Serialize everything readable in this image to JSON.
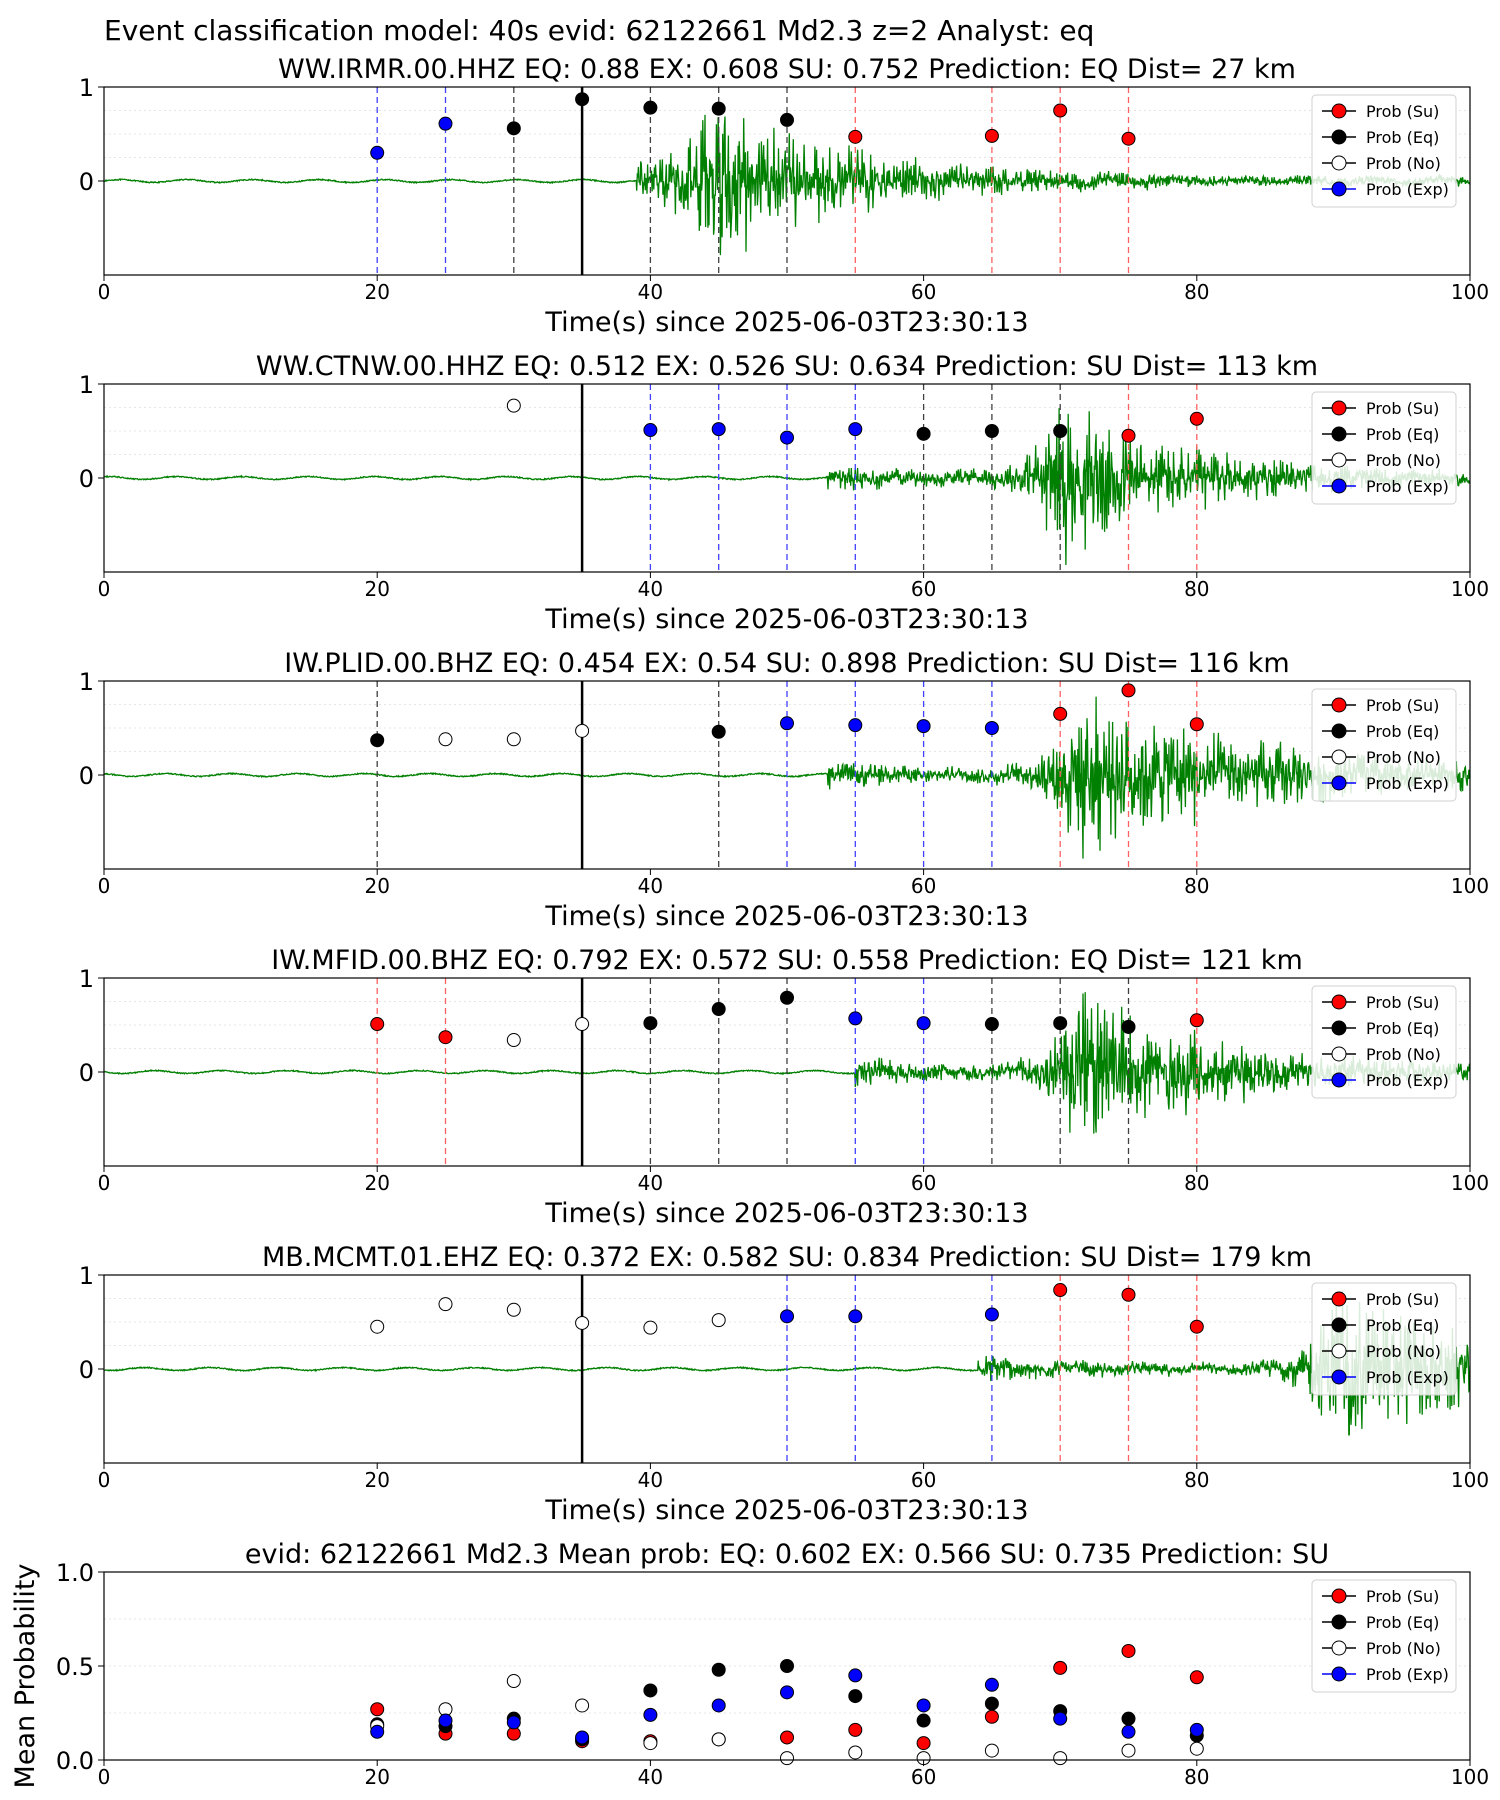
{
  "figure": {
    "suptitle": "Event classification model: 40s evid: 62122661 Md2.3 z=2 Analyst: eq"
  },
  "legend_labels": {
    "su": "Prob (Su)",
    "eq": "Prob (Eq)",
    "no": "Prob (No)",
    "exp": "Prob (Exp)"
  },
  "colors": {
    "su": "#ff0000",
    "eq": "#000000",
    "no": "#ffffff",
    "exp": "#0000ff",
    "waveform": "#008000",
    "su_line": "#ff6060",
    "eq_line": "#404040",
    "exp_line": "#4040ff"
  },
  "chart_data": [
    {
      "type": "scatter",
      "title": "WW.IRMR.00.HHZ   EQ: 0.88  EX: 0.608  SU: 0.752   Prediction: EQ    Dist= 27 km",
      "xlabel": "Time(s) since 2025-06-03T23:30:13",
      "ylabel": "",
      "xlim": [
        0,
        100
      ],
      "ylim": [
        -1,
        1
      ],
      "xticks": [
        "0",
        "20",
        "40",
        "60",
        "80",
        "100"
      ],
      "yticks": [
        "0",
        "1"
      ],
      "marker_line": 35,
      "waveform": {
        "onset": 39,
        "peak_time": 44,
        "peak_amp": 0.9,
        "decay": 10
      },
      "points": [
        {
          "x": 20,
          "y": 0.3,
          "cls": "exp"
        },
        {
          "x": 25,
          "y": 0.61,
          "cls": "exp"
        },
        {
          "x": 30,
          "y": 0.56,
          "cls": "eq"
        },
        {
          "x": 35,
          "y": 0.87,
          "cls": "eq"
        },
        {
          "x": 40,
          "y": 0.78,
          "cls": "eq"
        },
        {
          "x": 45,
          "y": 0.77,
          "cls": "eq"
        },
        {
          "x": 50,
          "y": 0.65,
          "cls": "eq"
        },
        {
          "x": 55,
          "y": 0.47,
          "cls": "su"
        },
        {
          "x": 65,
          "y": 0.48,
          "cls": "su"
        },
        {
          "x": 70,
          "y": 0.75,
          "cls": "su"
        },
        {
          "x": 75,
          "y": 0.45,
          "cls": "su"
        }
      ]
    },
    {
      "type": "scatter",
      "title": "WW.CTNW.00.HHZ   EQ: 0.512  EX: 0.526  SU: 0.634   Prediction: SU    Dist= 113 km",
      "xlabel": "Time(s) since 2025-06-03T23:30:13",
      "ylabel": "",
      "xlim": [
        0,
        100
      ],
      "ylim": [
        -1,
        1
      ],
      "xticks": [
        "0",
        "20",
        "40",
        "60",
        "80",
        "100"
      ],
      "yticks": [
        "0",
        "1"
      ],
      "marker_line": 35,
      "waveform": {
        "onset": 53,
        "peak_time": 70,
        "peak_amp": 0.95,
        "decay": 9
      },
      "points": [
        {
          "x": 30,
          "y": 0.77,
          "cls": "no"
        },
        {
          "x": 40,
          "y": 0.51,
          "cls": "exp"
        },
        {
          "x": 45,
          "y": 0.52,
          "cls": "exp"
        },
        {
          "x": 50,
          "y": 0.43,
          "cls": "exp"
        },
        {
          "x": 55,
          "y": 0.52,
          "cls": "exp"
        },
        {
          "x": 60,
          "y": 0.47,
          "cls": "eq"
        },
        {
          "x": 65,
          "y": 0.5,
          "cls": "eq"
        },
        {
          "x": 70,
          "y": 0.5,
          "cls": "eq"
        },
        {
          "x": 75,
          "y": 0.45,
          "cls": "su"
        },
        {
          "x": 80,
          "y": 0.63,
          "cls": "su"
        }
      ]
    },
    {
      "type": "scatter",
      "title": "IW.PLID.00.BHZ   EQ: 0.454  EX: 0.54  SU: 0.898   Prediction: SU    Dist= 116 km",
      "xlabel": "Time(s) since 2025-06-03T23:30:13",
      "ylabel": "",
      "xlim": [
        0,
        100
      ],
      "ylim": [
        -1,
        1
      ],
      "xticks": [
        "0",
        "20",
        "40",
        "60",
        "80",
        "100"
      ],
      "yticks": [
        "0",
        "1"
      ],
      "marker_line": 35,
      "waveform": {
        "onset": 53,
        "peak_time": 71,
        "peak_amp": 0.95,
        "decay": 14
      },
      "points": [
        {
          "x": 20,
          "y": 0.37,
          "cls": "eq"
        },
        {
          "x": 25,
          "y": 0.38,
          "cls": "no"
        },
        {
          "x": 30,
          "y": 0.38,
          "cls": "no"
        },
        {
          "x": 35,
          "y": 0.47,
          "cls": "no"
        },
        {
          "x": 45,
          "y": 0.46,
          "cls": "eq"
        },
        {
          "x": 50,
          "y": 0.55,
          "cls": "exp"
        },
        {
          "x": 55,
          "y": 0.53,
          "cls": "exp"
        },
        {
          "x": 60,
          "y": 0.52,
          "cls": "exp"
        },
        {
          "x": 65,
          "y": 0.5,
          "cls": "exp"
        },
        {
          "x": 70,
          "y": 0.65,
          "cls": "su"
        },
        {
          "x": 75,
          "y": 0.9,
          "cls": "su"
        },
        {
          "x": 80,
          "y": 0.54,
          "cls": "su"
        }
      ]
    },
    {
      "type": "scatter",
      "title": "IW.MFID.00.BHZ   EQ: 0.792  EX: 0.572  SU: 0.558   Prediction: EQ    Dist= 121 km",
      "xlabel": "Time(s) since 2025-06-03T23:30:13",
      "ylabel": "",
      "xlim": [
        0,
        100
      ],
      "ylim": [
        -1,
        1
      ],
      "xticks": [
        "0",
        "20",
        "40",
        "60",
        "80",
        "100"
      ],
      "yticks": [
        "0",
        "1"
      ],
      "marker_line": 35,
      "waveform": {
        "onset": 55,
        "peak_time": 71,
        "peak_amp": 0.9,
        "decay": 11
      },
      "points": [
        {
          "x": 20,
          "y": 0.51,
          "cls": "su"
        },
        {
          "x": 25,
          "y": 0.37,
          "cls": "su"
        },
        {
          "x": 30,
          "y": 0.34,
          "cls": "no"
        },
        {
          "x": 35,
          "y": 0.51,
          "cls": "no"
        },
        {
          "x": 40,
          "y": 0.52,
          "cls": "eq"
        },
        {
          "x": 45,
          "y": 0.67,
          "cls": "eq"
        },
        {
          "x": 50,
          "y": 0.79,
          "cls": "eq"
        },
        {
          "x": 55,
          "y": 0.57,
          "cls": "exp"
        },
        {
          "x": 60,
          "y": 0.52,
          "cls": "exp"
        },
        {
          "x": 65,
          "y": 0.51,
          "cls": "eq"
        },
        {
          "x": 70,
          "y": 0.52,
          "cls": "eq"
        },
        {
          "x": 75,
          "y": 0.48,
          "cls": "eq"
        },
        {
          "x": 80,
          "y": 0.55,
          "cls": "su"
        }
      ]
    },
    {
      "type": "scatter",
      "title": "MB.MCMT.01.EHZ   EQ: 0.372  EX: 0.582  SU: 0.834   Prediction: SU    Dist= 179 km",
      "xlabel": "Time(s) since 2025-06-03T23:30:13",
      "ylabel": "",
      "xlim": [
        0,
        100
      ],
      "ylim": [
        -1,
        1
      ],
      "xticks": [
        "0",
        "20",
        "40",
        "60",
        "80",
        "100"
      ],
      "yticks": [
        "0",
        "1"
      ],
      "marker_line": 35,
      "waveform": {
        "onset": 64,
        "peak_time": 90,
        "peak_amp": 0.95,
        "decay": 12
      },
      "points": [
        {
          "x": 20,
          "y": 0.45,
          "cls": "no"
        },
        {
          "x": 25,
          "y": 0.69,
          "cls": "no"
        },
        {
          "x": 30,
          "y": 0.63,
          "cls": "no"
        },
        {
          "x": 35,
          "y": 0.49,
          "cls": "no"
        },
        {
          "x": 40,
          "y": 0.44,
          "cls": "no"
        },
        {
          "x": 45,
          "y": 0.52,
          "cls": "no"
        },
        {
          "x": 50,
          "y": 0.56,
          "cls": "exp"
        },
        {
          "x": 55,
          "y": 0.56,
          "cls": "exp"
        },
        {
          "x": 65,
          "y": 0.58,
          "cls": "exp"
        },
        {
          "x": 70,
          "y": 0.84,
          "cls": "su"
        },
        {
          "x": 75,
          "y": 0.79,
          "cls": "su"
        },
        {
          "x": 80,
          "y": 0.45,
          "cls": "su"
        }
      ]
    },
    {
      "type": "scatter",
      "title": "evid: 62122661  Md2.3   Mean prob:   EQ: 0.602  EX: 0.566  SU: 0.735   Prediction: SU",
      "xlabel": "",
      "ylabel": "Mean Probability",
      "xlim": [
        0,
        100
      ],
      "ylim": [
        0,
        1
      ],
      "xticks": [
        "0",
        "20",
        "40",
        "60",
        "80",
        "100"
      ],
      "yticks": [
        "0.0",
        "0.5",
        "1.0"
      ],
      "x": [
        20,
        25,
        30,
        35,
        40,
        45,
        50,
        55,
        60,
        65,
        70,
        75,
        80
      ],
      "series": [
        {
          "cls": "su",
          "values": [
            0.27,
            0.14,
            0.14,
            0.1,
            0.1,
            0.11,
            0.12,
            0.16,
            0.09,
            0.23,
            0.49,
            0.58,
            0.44
          ]
        },
        {
          "cls": "eq",
          "values": [
            0.19,
            0.18,
            0.22,
            0.11,
            0.37,
            0.48,
            0.5,
            0.34,
            0.21,
            0.3,
            0.26,
            0.22,
            0.13
          ]
        },
        {
          "cls": "no",
          "values": [
            0.18,
            0.27,
            0.42,
            0.29,
            0.09,
            0.11,
            0.01,
            0.04,
            0.01,
            0.05,
            0.01,
            0.05,
            0.06
          ]
        },
        {
          "cls": "exp",
          "values": [
            0.15,
            0.21,
            0.2,
            0.12,
            0.24,
            0.29,
            0.36,
            0.45,
            0.29,
            0.4,
            0.22,
            0.15,
            0.16
          ]
        }
      ]
    }
  ]
}
